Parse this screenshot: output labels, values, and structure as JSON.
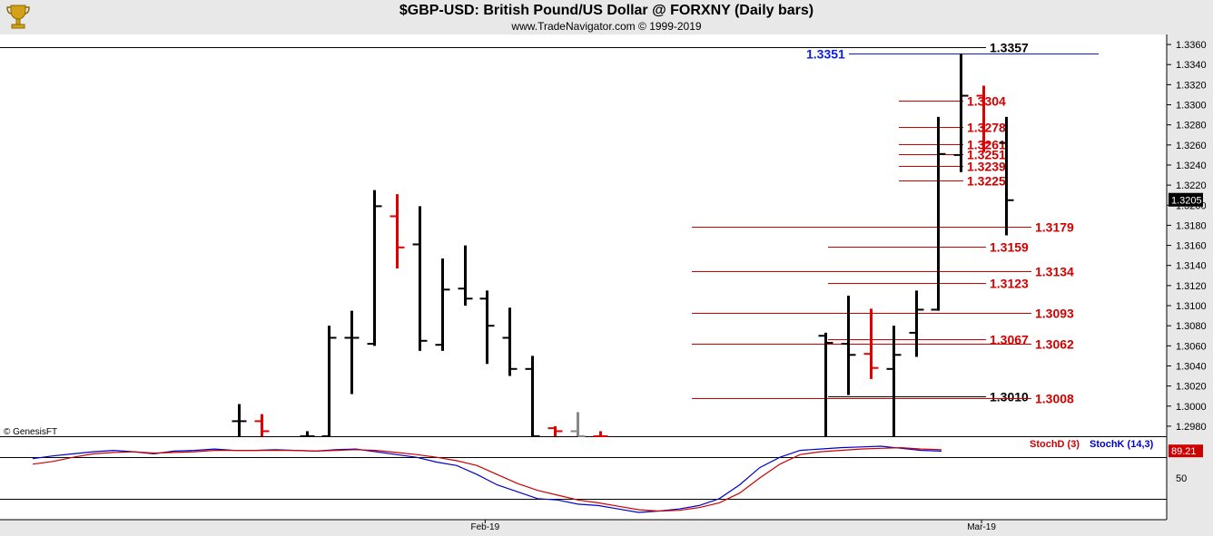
{
  "header": {
    "title": "$GBP-USD:  British Pound/US Dollar @ FORXNY  (Daily bars)",
    "subtitle": "www.TradeNavigator.com © 1999-2019"
  },
  "watermark": "© GenesisFT",
  "colors": {
    "up": "#000000",
    "down": "#e00000",
    "level": "#d00000",
    "stochK": "#0000cc",
    "stochD": "#cc0000",
    "neutral": "#888888"
  },
  "chart_data": [
    {
      "type": "ohlc",
      "ylim": [
        1.297,
        1.337
      ],
      "yticks": [
        "1.2980",
        "1.3000",
        "1.3020",
        "1.3040",
        "1.3060",
        "1.3080",
        "1.3100",
        "1.3120",
        "1.3140",
        "1.3160",
        "1.3180",
        "1.3200",
        "1.3220",
        "1.3240",
        "1.3260",
        "1.3280",
        "1.3300",
        "1.3320",
        "1.3340",
        "1.3360"
      ],
      "last_price": "1.3205",
      "bars": [
        {
          "i": 0,
          "o": 1.2985,
          "h": 1.3002,
          "l": 1.2965,
          "c": 1.2985,
          "color": "up"
        },
        {
          "i": 1,
          "o": 1.2985,
          "h": 1.2992,
          "l": 1.2965,
          "c": 1.2975,
          "color": "down"
        },
        {
          "i": 3,
          "o": 1.297,
          "h": 1.2975,
          "l": 1.2965,
          "c": 1.297,
          "color": "up"
        },
        {
          "i": 4,
          "o": 1.297,
          "h": 1.308,
          "l": 1.2965,
          "c": 1.3068,
          "color": "up"
        },
        {
          "i": 5,
          "o": 1.3068,
          "h": 1.3095,
          "l": 1.3012,
          "c": 1.3068,
          "color": "up"
        },
        {
          "i": 6,
          "o": 1.3062,
          "h": 1.3215,
          "l": 1.306,
          "c": 1.3199,
          "color": "up"
        },
        {
          "i": 7,
          "o": 1.3189,
          "h": 1.3211,
          "l": 1.3137,
          "c": 1.3158,
          "color": "down"
        },
        {
          "i": 8,
          "o": 1.3161,
          "h": 1.3199,
          "l": 1.3055,
          "c": 1.3065,
          "color": "up"
        },
        {
          "i": 9,
          "o": 1.3061,
          "h": 1.3147,
          "l": 1.3055,
          "c": 1.3116,
          "color": "up"
        },
        {
          "i": 10,
          "o": 1.3117,
          "h": 1.316,
          "l": 1.31,
          "c": 1.3107,
          "color": "up"
        },
        {
          "i": 11,
          "o": 1.3107,
          "h": 1.3115,
          "l": 1.3042,
          "c": 1.308,
          "color": "up"
        },
        {
          "i": 12,
          "o": 1.3068,
          "h": 1.3098,
          "l": 1.303,
          "c": 1.3037,
          "color": "up"
        },
        {
          "i": 13,
          "o": 1.3037,
          "h": 1.305,
          "l": 1.2965,
          "c": 1.297,
          "color": "up"
        },
        {
          "i": 14,
          "o": 1.2978,
          "h": 1.298,
          "l": 1.2965,
          "c": 1.2975,
          "color": "down"
        },
        {
          "i": 15,
          "o": 1.2975,
          "h": 1.2994,
          "l": 1.2965,
          "c": 1.297,
          "color": "neutral"
        },
        {
          "i": 16,
          "o": 1.297,
          "h": 1.2975,
          "l": 1.2965,
          "c": 1.297,
          "color": "down"
        },
        {
          "i": 26,
          "o": 1.307,
          "h": 1.3073,
          "l": 1.2965,
          "c": 1.3063,
          "color": "up"
        },
        {
          "i": 27,
          "o": 1.3062,
          "h": 1.311,
          "l": 1.3011,
          "c": 1.3051,
          "color": "up"
        },
        {
          "i": 28,
          "o": 1.3052,
          "h": 1.3097,
          "l": 1.3027,
          "c": 1.3038,
          "color": "down"
        },
        {
          "i": 29,
          "o": 1.3037,
          "h": 1.308,
          "l": 1.2965,
          "c": 1.3051,
          "color": "up"
        },
        {
          "i": 30,
          "o": 1.3073,
          "h": 1.3115,
          "l": 1.3049,
          "c": 1.3096,
          "color": "up"
        },
        {
          "i": 31,
          "o": 1.3096,
          "h": 1.3288,
          "l": 1.3095,
          "c": 1.3251,
          "color": "up"
        },
        {
          "i": 32,
          "o": 1.325,
          "h": 1.3351,
          "l": 1.3233,
          "c": 1.3309,
          "color": "up"
        },
        {
          "i": 33,
          "o": 1.3309,
          "h": 1.3319,
          "l": 1.3253,
          "c": 1.3262,
          "color": "down"
        },
        {
          "i": 34,
          "o": 1.3262,
          "h": 1.3288,
          "l": 1.317,
          "c": 1.3205,
          "color": "up"
        }
      ],
      "levels": [
        {
          "label": "1.3357",
          "color": "black"
        },
        {
          "label": "1.3351",
          "color": "blue"
        },
        {
          "label": "1.3304",
          "color": "red"
        },
        {
          "label": "1.3278",
          "color": "red"
        },
        {
          "label": "1.3261",
          "color": "red"
        },
        {
          "label": "1.3251",
          "color": "red"
        },
        {
          "label": "1.3239",
          "color": "red"
        },
        {
          "label": "1.3225",
          "color": "red"
        },
        {
          "label": "1.3179",
          "color": "red"
        },
        {
          "label": "1.3159",
          "color": "red"
        },
        {
          "label": "1.3134",
          "color": "red"
        },
        {
          "label": "1.3123",
          "color": "red"
        },
        {
          "label": "1.3093",
          "color": "red"
        },
        {
          "label": "1.3067",
          "color": "red"
        },
        {
          "label": "1.3062",
          "color": "red"
        },
        {
          "label": "1.3010",
          "color": "black"
        },
        {
          "label": "1.3008",
          "color": "red"
        }
      ]
    },
    {
      "type": "line",
      "ylim": [
        0,
        100
      ],
      "yticks": [
        "50"
      ],
      "last_value": "89.21",
      "legend": [
        "StochD (3)",
        "StochK (14,3)"
      ],
      "series": [
        {
          "name": "StochK (14,3)",
          "color": "stochK",
          "values": [
            78,
            82,
            85,
            88,
            90,
            88,
            85,
            89,
            90,
            92,
            90,
            90,
            91,
            90,
            89,
            91,
            92,
            88,
            84,
            80,
            73,
            68,
            55,
            40,
            30,
            20,
            18,
            12,
            10,
            5,
            0,
            2,
            5,
            10,
            20,
            40,
            65,
            80,
            90,
            92,
            94,
            95,
            96,
            93,
            90,
            89
          ]
        },
        {
          "name": "StochD (3)",
          "color": "stochD",
          "values": [
            70,
            74,
            80,
            85,
            87,
            88,
            86,
            87,
            88,
            90,
            90,
            90,
            90,
            90,
            89,
            90,
            91,
            90,
            87,
            84,
            80,
            75,
            68,
            55,
            42,
            32,
            25,
            18,
            14,
            9,
            4,
            2,
            3,
            7,
            14,
            28,
            50,
            70,
            84,
            88,
            90,
            92,
            93,
            94,
            92,
            91
          ]
        }
      ]
    }
  ],
  "xaxis": {
    "labels": [
      {
        "label": "Feb-19",
        "bar": 11
      },
      {
        "label": "Mar-19",
        "bar": 33
      }
    ]
  }
}
